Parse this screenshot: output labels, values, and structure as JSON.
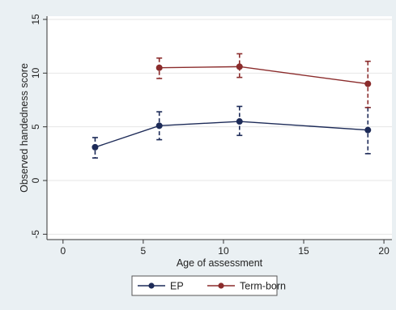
{
  "chart_data": {
    "type": "line",
    "title": "",
    "xlabel": "Age of assessment",
    "ylabel": "Observed handedness score",
    "xlim": [
      -1,
      20.5
    ],
    "ylim": [
      -5.5,
      15.3
    ],
    "xticks": [
      0,
      5,
      10,
      15,
      20
    ],
    "yticks": [
      -5,
      0,
      5,
      10,
      15
    ],
    "grid": true,
    "legend_position": "bottom-center",
    "series": [
      {
        "name": "EP",
        "color": "#1d2b58",
        "marker": "circle",
        "line_style": "solid",
        "whisker_style": "dashed",
        "points": [
          {
            "x": 2,
            "y": 3.1,
            "lo": 2.1,
            "hi": 4.0
          },
          {
            "x": 6,
            "y": 5.1,
            "lo": 3.8,
            "hi": 6.4
          },
          {
            "x": 11,
            "y": 5.5,
            "lo": 4.2,
            "hi": 6.9
          },
          {
            "x": 19,
            "y": 4.7,
            "lo": 2.5,
            "hi": 6.8
          }
        ]
      },
      {
        "name": "Term-born",
        "color": "#8b2c2c",
        "marker": "circle",
        "line_style": "solid",
        "whisker_style": "dashed",
        "points": [
          {
            "x": 6,
            "y": 10.5,
            "lo": 9.5,
            "hi": 11.4
          },
          {
            "x": 11,
            "y": 10.6,
            "lo": 9.6,
            "hi": 11.8
          },
          {
            "x": 19,
            "y": 9.0,
            "lo": 6.8,
            "hi": 11.1
          }
        ]
      }
    ]
  }
}
